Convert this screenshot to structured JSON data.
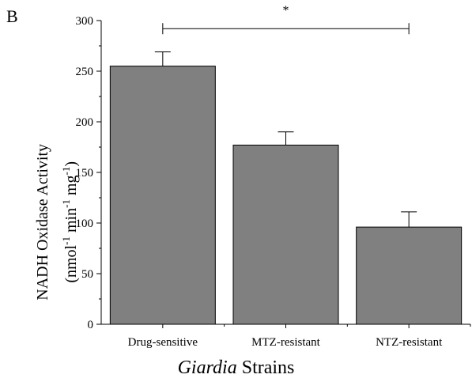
{
  "panel_label": "B",
  "y_title_line1": "NADH Oxidase Activity",
  "y_unit": {
    "open": "(nmol",
    "exp1": "-1",
    "min": " min",
    "exp2": "-1",
    "mg": " mg",
    "exp3": "-1",
    "close": ")"
  },
  "x_title": {
    "italic": "Giardia",
    "rest": " Strains"
  },
  "significance_mark": "*",
  "chart_data": {
    "type": "bar",
    "categories": [
      "Drug-sensitive",
      "MTZ-resistant",
      "NTZ-resistant"
    ],
    "values": [
      255,
      177,
      96
    ],
    "errors": [
      14,
      13,
      15
    ],
    "ylim": [
      0,
      300
    ],
    "yticks": [
      0,
      50,
      100,
      150,
      200,
      250,
      300
    ],
    "bar_color": "#808080",
    "grid": false,
    "significance": {
      "from": "Drug-sensitive",
      "to": "NTZ-resistant",
      "level": 292,
      "mark": "*"
    }
  }
}
